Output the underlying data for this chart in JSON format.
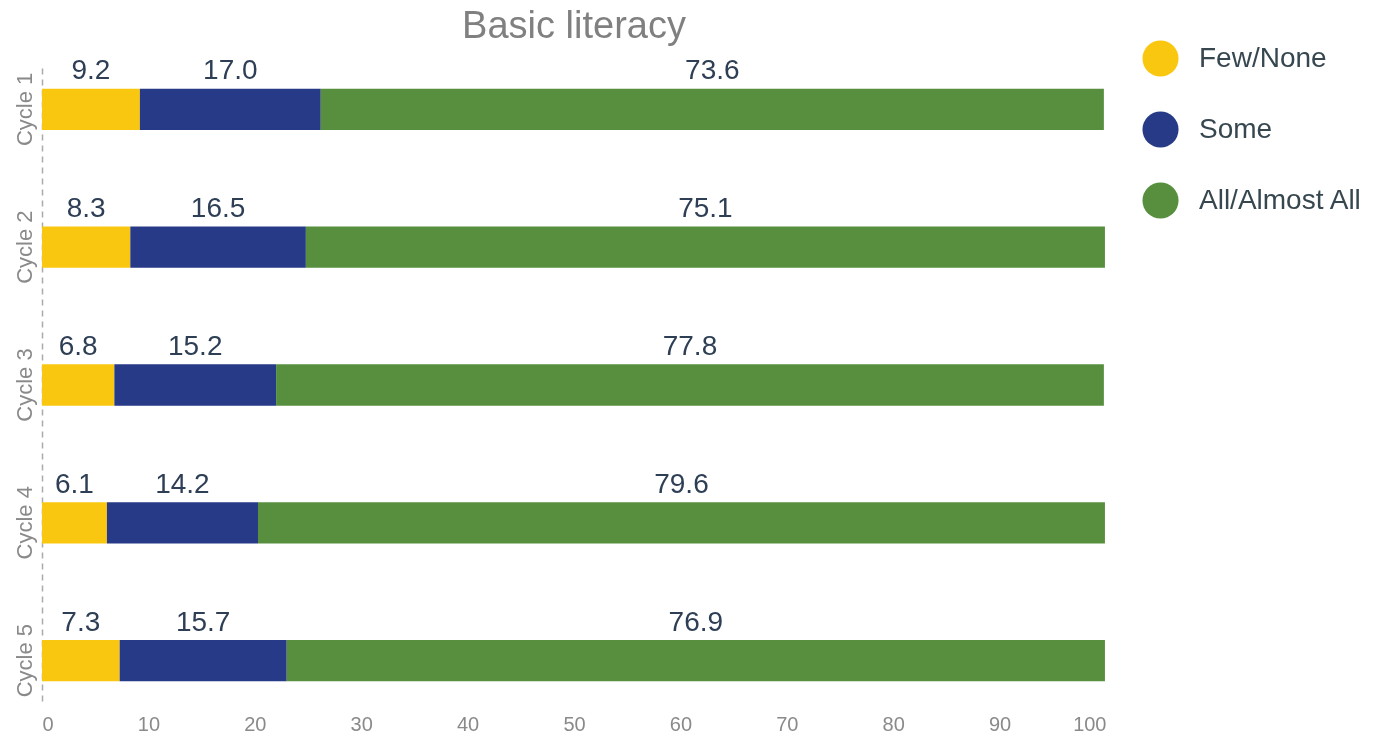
{
  "chart_data": {
    "type": "bar",
    "title": "Basic literacy",
    "orientation": "horizontal",
    "stacked": true,
    "categories": [
      "Cycle 1",
      "Cycle 2",
      "Cycle 3",
      "Cycle 4",
      "Cycle 5"
    ],
    "series": [
      {
        "name": "Few/None",
        "color": "#fac710",
        "values": [
          9.2,
          8.3,
          6.8,
          6.1,
          7.3
        ],
        "value_labels": [
          "9.2",
          "8.3",
          "6.8",
          "6.1",
          "7.3"
        ]
      },
      {
        "name": "Some",
        "color": "#263a87",
        "values": [
          17.0,
          16.5,
          15.2,
          14.2,
          15.7
        ],
        "value_labels": [
          "17.0",
          "16.5",
          "15.2",
          "14.2",
          "15.7"
        ]
      },
      {
        "name": "All/Almost All",
        "color": "#578f3f",
        "values": [
          73.6,
          75.1,
          77.8,
          79.6,
          76.9
        ],
        "value_labels": [
          "73.6",
          "75.1",
          "77.8",
          "79.6",
          "76.9"
        ]
      }
    ],
    "xlim": [
      0,
      100
    ],
    "xticks": [
      0,
      10,
      20,
      30,
      40,
      50,
      60,
      70,
      80,
      90,
      100
    ],
    "grid": false,
    "legend": "top right"
  }
}
